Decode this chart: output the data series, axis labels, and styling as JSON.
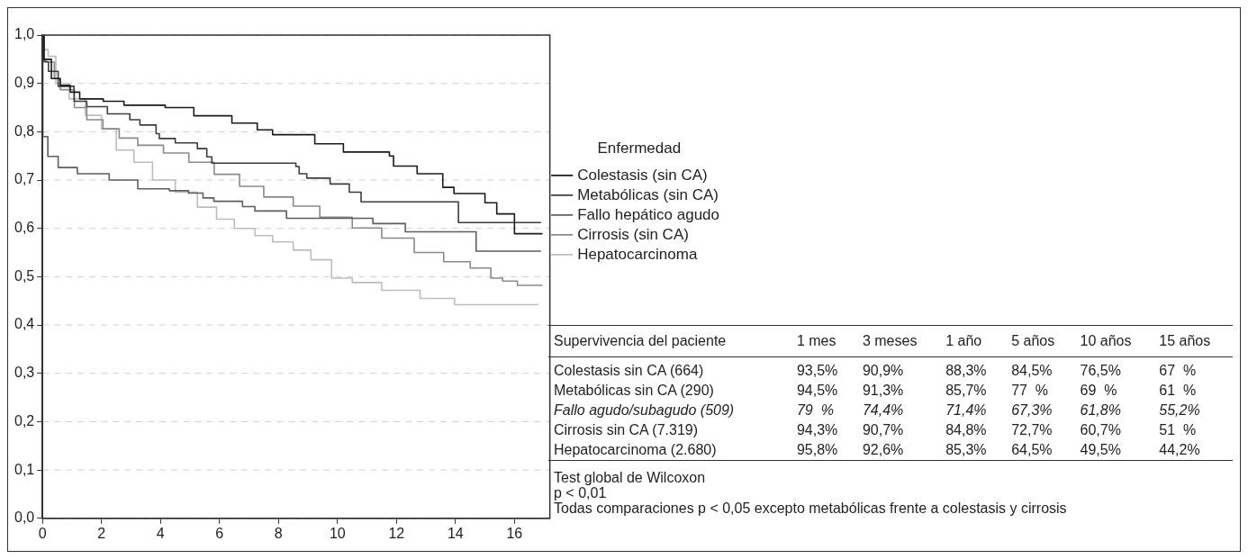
{
  "chart_data": [
    {
      "type": "step",
      "xlim": [
        0,
        17.2
      ],
      "xticks": [
        0,
        2,
        4,
        6,
        8,
        10,
        12,
        14,
        16
      ],
      "ylim": [
        0,
        1
      ],
      "yticks": [
        {
          "value": 0,
          "label": "0,0"
        },
        {
          "value": 0.1,
          "label": "0,1"
        },
        {
          "value": 0.2,
          "label": "0,2"
        },
        {
          "value": 0.3,
          "label": "0,3"
        },
        {
          "value": 0.4,
          "label": "0,4"
        },
        {
          "value": 0.5,
          "label": "0,5"
        },
        {
          "value": 0.6,
          "label": "0,6"
        },
        {
          "value": 0.7,
          "label": "0,7"
        },
        {
          "value": 0.8,
          "label": "0,8"
        },
        {
          "value": 0.9,
          "label": "0,9"
        },
        {
          "value": 1,
          "label": "1,0"
        }
      ],
      "grid": "y",
      "legend": "right",
      "legend_title": "Enfermedad",
      "marker": "none",
      "line_style": "solid",
      "series": [
        {
          "name": "Colestasis (sin CA)",
          "color": "#1a1a1a",
          "x": [
            0,
            0.05,
            0.3,
            0.6,
            0.94,
            1.26,
            2.06,
            2.76,
            4.16,
            5.13,
            6.42,
            7.28,
            7.8,
            9.23,
            10.2,
            11.76,
            11.9,
            12.7,
            13.57,
            13.95,
            15.0,
            15.4,
            16.0,
            16.95
          ],
          "values": [
            1,
            0.95,
            0.91,
            0.896,
            0.882,
            0.868,
            0.863,
            0.855,
            0.85,
            0.833,
            0.818,
            0.804,
            0.794,
            0.775,
            0.758,
            0.75,
            0.729,
            0.713,
            0.685,
            0.672,
            0.653,
            0.63,
            0.589,
            0.589
          ]
        },
        {
          "name": "Metabólicas (sin CA)",
          "color": "#3d3d3d",
          "x": [
            0,
            0.05,
            0.2,
            0.53,
            1.07,
            1.5,
            2.2,
            2.96,
            3.3,
            3.85,
            3.96,
            4.5,
            5.25,
            5.57,
            5.74,
            8.59,
            8.7,
            8.96,
            9.75,
            10.4,
            10.8,
            14.1,
            16.9
          ],
          "values": [
            1,
            0.945,
            0.925,
            0.894,
            0.863,
            0.852,
            0.837,
            0.825,
            0.814,
            0.796,
            0.786,
            0.777,
            0.765,
            0.748,
            0.735,
            0.728,
            0.713,
            0.704,
            0.692,
            0.675,
            0.655,
            0.612,
            0.612
          ]
        },
        {
          "name": "Fallo hepático agudo",
          "color": "#5e5e5e",
          "x": [
            0,
            0.01,
            0.18,
            0.53,
            1.18,
            2.26,
            3.23,
            4.3,
            4.95,
            5.44,
            5.81,
            6.78,
            7.2,
            8.27,
            11.2,
            12.3,
            14.7,
            16.9
          ],
          "values": [
            1,
            0.79,
            0.749,
            0.726,
            0.713,
            0.7,
            0.682,
            0.678,
            0.673,
            0.663,
            0.656,
            0.645,
            0.636,
            0.621,
            0.61,
            0.593,
            0.553,
            0.553
          ]
        },
        {
          "name": "Cirrosis (sin CA)",
          "color": "#8a8a8a",
          "x": [
            0,
            0.03,
            0.1,
            0.4,
            0.6,
            1.08,
            1.5,
            2.05,
            2.6,
            3.23,
            4.1,
            4.96,
            5.82,
            6.68,
            7.5,
            8.5,
            9.4,
            10.5,
            11.5,
            12.6,
            13.6,
            14.5,
            15.2,
            15.6,
            16.1,
            16.95
          ],
          "values": [
            1,
            0.95,
            0.944,
            0.91,
            0.887,
            0.85,
            0.825,
            0.806,
            0.787,
            0.772,
            0.756,
            0.737,
            0.712,
            0.687,
            0.665,
            0.646,
            0.623,
            0.601,
            0.58,
            0.55,
            0.531,
            0.518,
            0.497,
            0.491,
            0.482,
            0.482
          ]
        },
        {
          "name": "Hepatocarcinoma",
          "color": "#bdbdbd",
          "x": [
            0,
            0.03,
            0.19,
            0.45,
            0.9,
            1.45,
            2.0,
            2.5,
            3.1,
            3.73,
            4.5,
            5.25,
            5.9,
            6.5,
            7.2,
            7.8,
            8.5,
            9.1,
            9.8,
            10.5,
            11.5,
            12.8,
            13.97,
            16.8
          ],
          "values": [
            1,
            0.97,
            0.956,
            0.9,
            0.868,
            0.834,
            0.806,
            0.762,
            0.737,
            0.7,
            0.675,
            0.644,
            0.619,
            0.6,
            0.585,
            0.572,
            0.555,
            0.535,
            0.497,
            0.488,
            0.472,
            0.455,
            0.442,
            0.442
          ]
        }
      ]
    },
    {
      "type": "other",
      "title": "Supervivencia del paciente",
      "categories": [
        "1 mes",
        "3 meses",
        "1 año",
        "5 años",
        "10 años",
        "15 años"
      ],
      "y_categories": [
        "Colestasis sin CA (664)",
        "Metabólicas sin CA (290)",
        "Fallo agudo/subagudo (509)",
        "Cirrosis sin CA (7.319)",
        "Hepatocarcinoma (2.680)"
      ],
      "cell_labels": [
        [
          "93,5%",
          "90,9%",
          "88,3%",
          "84,5%",
          "76,5%",
          "67  %"
        ],
        [
          "94,5%",
          "91,3%",
          "85,7%",
          "77  %",
          "69  %",
          "61  %"
        ],
        [
          "79  %",
          "74,4%",
          "71,4%",
          "67,3%",
          "61,8%",
          "55,2%"
        ],
        [
          "94,3%",
          "90,7%",
          "84,8%",
          "72,7%",
          "60,7%",
          "51  %"
        ],
        [
          "95,8%",
          "92,6%",
          "85,3%",
          "64,5%",
          "49,5%",
          "44,2%"
        ]
      ],
      "annotations": [
        "Test global de Wilcoxon",
        "p < 0,01",
        "Todas comparaciones p < 0,05 excepto metabólicas frente a colestasis y cirrosis"
      ]
    }
  ]
}
